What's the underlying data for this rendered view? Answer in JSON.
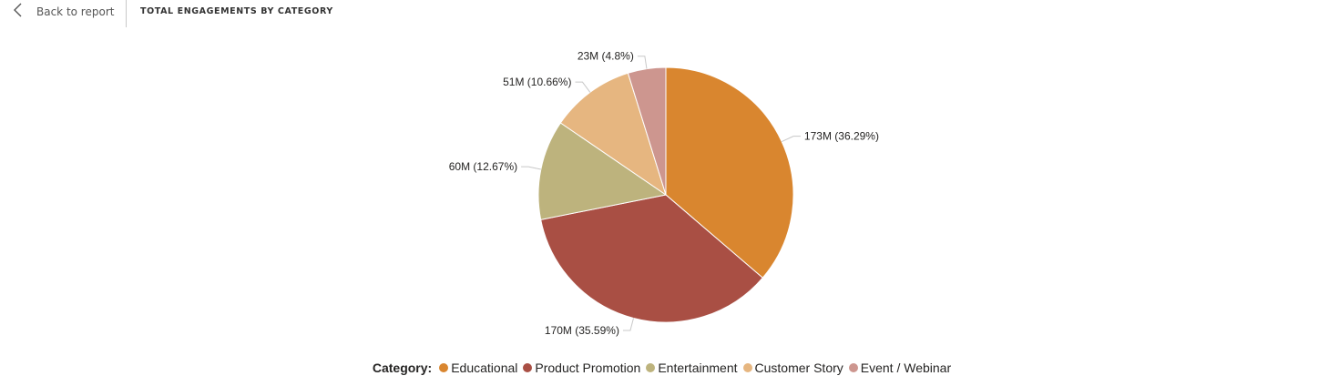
{
  "header": {
    "back_label": "Back to report",
    "title": "TOTAL ENGAGEMENTS BY CATEGORY"
  },
  "legend": {
    "title": "Category:"
  },
  "chart_data": {
    "type": "pie",
    "slices": [
      {
        "label": "Educational",
        "value": 173,
        "display": "173M (36.29%)",
        "color": "#D9862F"
      },
      {
        "label": "Product Promotion",
        "value": 170,
        "display": "170M (35.59%)",
        "color": "#A94F44"
      },
      {
        "label": "Entertainment",
        "value": 60,
        "display": "60M (12.67%)",
        "color": "#BDB37D"
      },
      {
        "label": "Customer Story",
        "value": 51,
        "display": "51M (10.66%)",
        "color": "#E6B680"
      },
      {
        "label": "Event / Webinar",
        "value": 23,
        "display": "23M (4.8%)",
        "color": "#CD968F"
      }
    ],
    "percentages": [
      36.29,
      35.59,
      12.67,
      10.66,
      4.8
    ],
    "legend_position": "bottom-center",
    "start_angle": "12 o'clock",
    "direction": "clockwise"
  }
}
